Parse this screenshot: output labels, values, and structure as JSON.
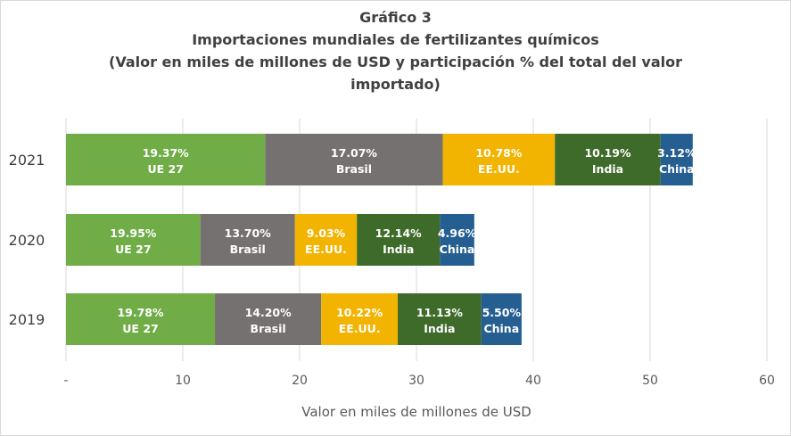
{
  "chart_data": {
    "type": "bar",
    "orientation": "horizontal",
    "stacked": true,
    "title": [
      "Gráfico 3",
      "Importaciones mundiales de fertilizantes químicos",
      "(Valor en miles de millones de USD y participación % del total del valor",
      "importado)"
    ],
    "xlabel": "Valor en miles de millones de USD",
    "xlim": [
      0,
      60
    ],
    "xticks": [
      "-",
      "10",
      "20",
      "30",
      "40",
      "50",
      "60"
    ],
    "grid": true,
    "legend": "none",
    "categories": [
      "2021",
      "2020",
      "2019"
    ],
    "colors": {
      "UE 27": "#70ad47",
      "Brasil": "#767171",
      "EE.UU.": "#f2b400",
      "India": "#3e6a2a",
      "China": "#255e91"
    },
    "series": [
      {
        "name": "UE 27",
        "values": [
          17.05,
          11.5,
          12.75
        ],
        "labels": [
          "19.37%",
          "19.95%",
          "19.78%"
        ]
      },
      {
        "name": "Brasil",
        "values": [
          15.2,
          8.1,
          9.1
        ],
        "labels": [
          "17.07%",
          "13.70%",
          "14.20%"
        ]
      },
      {
        "name": "EE.UU.",
        "values": [
          9.6,
          5.3,
          6.55
        ],
        "labels": [
          "10.78%",
          "9.03%",
          "10.22%"
        ]
      },
      {
        "name": "India",
        "values": [
          9.05,
          7.1,
          7.15
        ],
        "labels": [
          "10.19%",
          "12.14%",
          "11.13%"
        ]
      },
      {
        "name": "China",
        "values": [
          2.75,
          2.95,
          3.45
        ],
        "labels": [
          "3.12%",
          "4.96%",
          "5.50%"
        ]
      }
    ]
  }
}
